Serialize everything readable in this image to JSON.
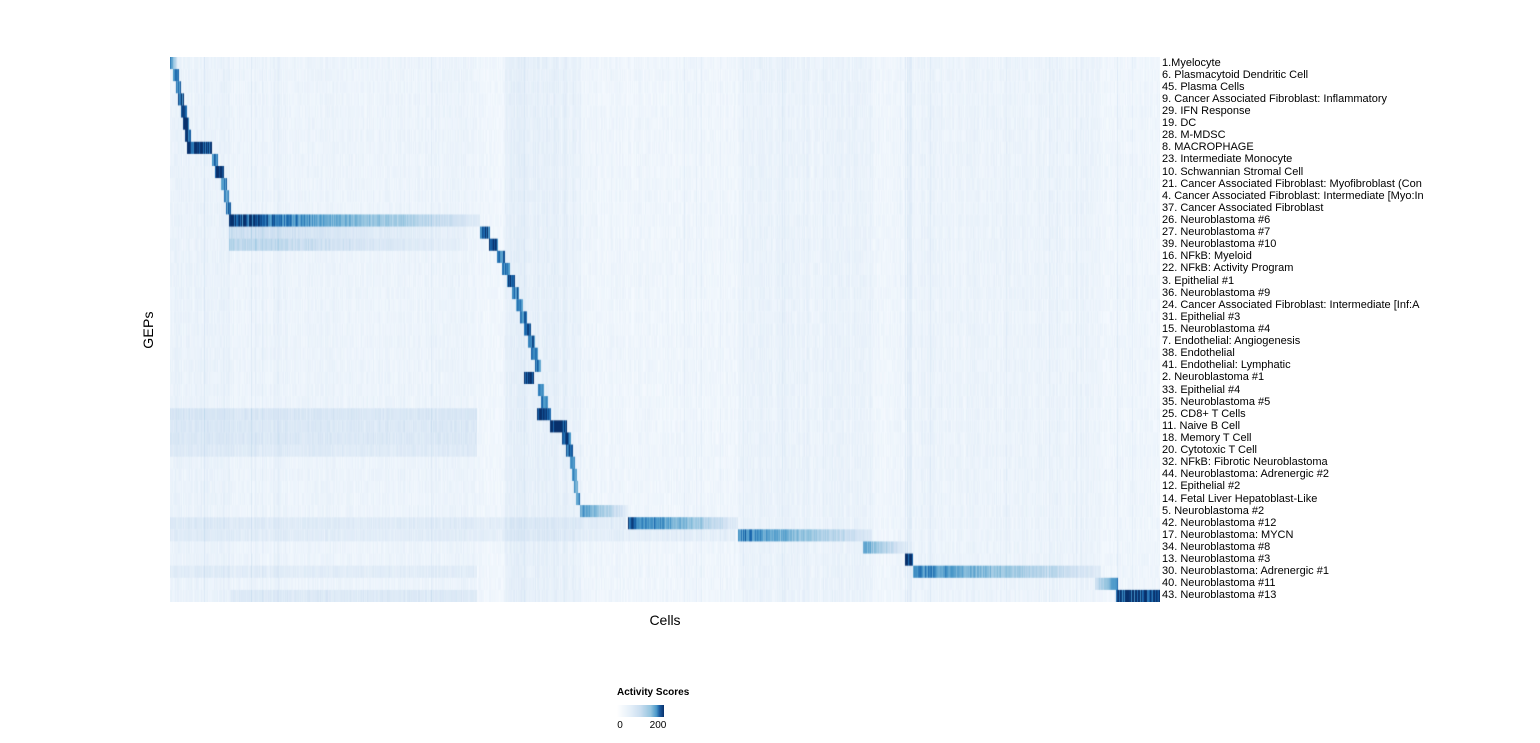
{
  "page": {
    "background": "#ffffff"
  },
  "chart_data": {
    "type": "heatmap",
    "title": "",
    "xlabel": "Cells",
    "ylabel": "GEPs",
    "x_axis": {
      "label": "Cells",
      "tick_labels": []
    },
    "y_axis": {
      "label": "GEPs"
    },
    "colorbar": {
      "title": "Activity Scores",
      "tick_labels": [
        "0",
        "200"
      ],
      "min": 0,
      "max": 200,
      "palette": [
        "#f7fbff",
        "#d0e1f2",
        "#94c4df",
        "#4a98c9",
        "#1764ab",
        "#08306b"
      ]
    },
    "value_max": 255,
    "column_bands": [
      [
        0.0,
        0.06,
        14
      ],
      [
        0.06,
        0.31,
        7
      ],
      [
        0.338,
        0.415,
        20
      ],
      [
        0.573,
        0.71,
        12
      ],
      [
        0.744,
        0.749,
        28
      ],
      [
        0.75,
        0.94,
        8
      ]
    ],
    "rows": [
      {
        "label": "1.Myelocyte",
        "blocks": [
          [
            0.0,
            0.007,
            220,
            "left"
          ]
        ]
      },
      {
        "label": "6. Plasmacytoid Dendritic Cell",
        "blocks": [
          [
            0.003,
            0.009,
            205,
            "none"
          ]
        ]
      },
      {
        "label": "45. Plasma Cells",
        "blocks": [
          [
            0.006,
            0.011,
            195,
            "none"
          ]
        ]
      },
      {
        "label": "9. Cancer Associated Fibroblast: Inflammatory",
        "blocks": [
          [
            0.008,
            0.014,
            215,
            "none"
          ]
        ]
      },
      {
        "label": "29. IFN Response",
        "blocks": [
          [
            0.011,
            0.017,
            205,
            "none"
          ]
        ]
      },
      {
        "label": "19. DC",
        "blocks": [
          [
            0.013,
            0.019,
            235,
            "none"
          ]
        ]
      },
      {
        "label": "28. M-MDSC",
        "blocks": [
          [
            0.015,
            0.021,
            205,
            "none"
          ]
        ]
      },
      {
        "label": "8. MACROPHAGE",
        "blocks": [
          [
            0.017,
            0.042,
            245,
            "none"
          ]
        ]
      },
      {
        "label": "23. Intermediate Monocyte",
        "blocks": [
          [
            0.042,
            0.048,
            195,
            "none"
          ]
        ]
      },
      {
        "label": "10. Schwannian Stromal Cell",
        "blocks": [
          [
            0.045,
            0.054,
            235,
            "none"
          ]
        ]
      },
      {
        "label": "21. Cancer Associated Fibroblast: Myofibroblast (Con",
        "blocks": [
          [
            0.051,
            0.057,
            185,
            "none"
          ]
        ]
      },
      {
        "label": "4. Cancer Associated Fibroblast: Intermediate [Myo:In",
        "blocks": [
          [
            0.054,
            0.059,
            175,
            "none"
          ]
        ]
      },
      {
        "label": "37. Cancer Associated Fibroblast",
        "blocks": [
          [
            0.056,
            0.061,
            185,
            "none"
          ]
        ]
      },
      {
        "label": "26. Neuroblastoma #6",
        "blocks": [
          [
            0.059,
            0.313,
            235,
            "left"
          ]
        ]
      },
      {
        "label": "27. Neuroblastoma #7",
        "blocks": [
          [
            0.059,
            0.3,
            55,
            "left"
          ],
          [
            0.313,
            0.323,
            225,
            "none"
          ]
        ]
      },
      {
        "label": "39. Neuroblastoma #10",
        "blocks": [
          [
            0.059,
            0.3,
            75,
            "left"
          ],
          [
            0.322,
            0.331,
            235,
            "none"
          ]
        ]
      },
      {
        "label": "16. NFkB: Myeloid",
        "blocks": [
          [
            0.33,
            0.338,
            205,
            "none"
          ]
        ]
      },
      {
        "label": "22. NFkB: Activity Program",
        "blocks": [
          [
            0.335,
            0.343,
            195,
            "none"
          ]
        ]
      },
      {
        "label": "3. Epithelial #1",
        "blocks": [
          [
            0.34,
            0.348,
            205,
            "none"
          ]
        ]
      },
      {
        "label": "36. Neuroblastoma #9",
        "blocks": [
          [
            0.345,
            0.352,
            185,
            "none"
          ]
        ]
      },
      {
        "label": "24. Cancer Associated Fibroblast: Intermediate [Inf:A",
        "blocks": [
          [
            0.349,
            0.356,
            175,
            "none"
          ]
        ]
      },
      {
        "label": "31. Epithelial #3",
        "blocks": [
          [
            0.353,
            0.36,
            185,
            "none"
          ]
        ]
      },
      {
        "label": "15. Neuroblastoma #4",
        "blocks": [
          [
            0.357,
            0.364,
            195,
            "none"
          ]
        ]
      },
      {
        "label": "7. Endothelial: Angiogenesis",
        "blocks": [
          [
            0.361,
            0.368,
            200,
            "none"
          ]
        ]
      },
      {
        "label": "38. Endothelial",
        "blocks": [
          [
            0.364,
            0.371,
            190,
            "none"
          ]
        ]
      },
      {
        "label": "41. Endothelial: Lymphatic",
        "blocks": [
          [
            0.368,
            0.374,
            180,
            "none"
          ]
        ]
      },
      {
        "label": "2. Neuroblastoma #1",
        "blocks": [
          [
            0.357,
            0.367,
            245,
            "none"
          ]
        ]
      },
      {
        "label": "33. Epithelial #4",
        "blocks": [
          [
            0.371,
            0.377,
            175,
            "none"
          ]
        ]
      },
      {
        "label": "35. Neuroblastoma #5",
        "blocks": [
          [
            0.374,
            0.381,
            185,
            "none"
          ]
        ]
      },
      {
        "label": "25. CD8+ T Cells",
        "blocks": [
          [
            0.37,
            0.384,
            240,
            "none"
          ],
          [
            0.0,
            0.31,
            32,
            "none"
          ]
        ]
      },
      {
        "label": "11. Naive B Cell",
        "blocks": [
          [
            0.383,
            0.4,
            248,
            "none"
          ],
          [
            0.0,
            0.31,
            28,
            "none"
          ]
        ]
      },
      {
        "label": "18. Memory T Cell",
        "blocks": [
          [
            0.395,
            0.405,
            205,
            "none"
          ],
          [
            0.0,
            0.31,
            28,
            "none"
          ]
        ]
      },
      {
        "label": "20. Cytotoxic T Cell",
        "blocks": [
          [
            0.4,
            0.407,
            195,
            "none"
          ],
          [
            0.0,
            0.31,
            22,
            "none"
          ]
        ]
      },
      {
        "label": "32. NFkB: Fibrotic Neuroblastoma",
        "blocks": [
          [
            0.404,
            0.409,
            165,
            "none"
          ]
        ]
      },
      {
        "label": "44. Neuroblastoma: Adrenergic #2",
        "blocks": [
          [
            0.406,
            0.411,
            165,
            "none"
          ]
        ]
      },
      {
        "label": "12. Epithelial #2",
        "blocks": [
          [
            0.408,
            0.412,
            155,
            "none"
          ]
        ]
      },
      {
        "label": "14. Fetal Liver Hepatoblast-Like",
        "blocks": [
          [
            0.41,
            0.414,
            175,
            "none"
          ]
        ]
      },
      {
        "label": "5. Neuroblastoma #2",
        "blocks": [
          [
            0.414,
            0.462,
            175,
            "left"
          ]
        ]
      },
      {
        "label": "42. Neuroblastoma #12",
        "blocks": [
          [
            0.462,
            0.573,
            240,
            "left"
          ],
          [
            0.0,
            0.46,
            22,
            "none"
          ]
        ]
      },
      {
        "label": "17. Neuroblastoma: MYCN",
        "blocks": [
          [
            0.573,
            0.709,
            195,
            "left"
          ],
          [
            0.0,
            0.57,
            18,
            "none"
          ]
        ]
      },
      {
        "label": "34. Neuroblastoma #8",
        "blocks": [
          [
            0.7,
            0.745,
            145,
            "left"
          ]
        ]
      },
      {
        "label": "13. Neuroblastoma #3",
        "blocks": [
          [
            0.742,
            0.75,
            240,
            "none"
          ]
        ]
      },
      {
        "label": "30. Neuroblastoma: Adrenergic #1",
        "blocks": [
          [
            0.75,
            0.94,
            190,
            "left"
          ],
          [
            0.0,
            0.31,
            18,
            "none"
          ]
        ]
      },
      {
        "label": "40. Neuroblastoma #11",
        "blocks": [
          [
            0.934,
            0.957,
            185,
            "right"
          ]
        ]
      },
      {
        "label": "43. Neuroblastoma #13",
        "blocks": [
          [
            0.955,
            1.0,
            235,
            "none"
          ],
          [
            0.06,
            0.31,
            25,
            "none"
          ]
        ]
      }
    ]
  }
}
